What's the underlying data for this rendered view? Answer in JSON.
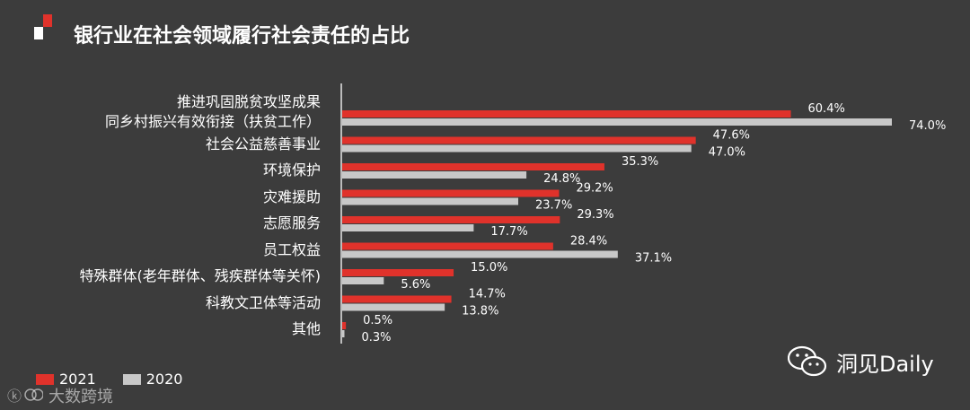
{
  "title": "银行业在社会领域履行社会责任的占比",
  "colors": {
    "series_2021": "#e0322b",
    "series_2020": "#c8c8c8",
    "background": "#3c3c3c",
    "accent": "#e0322b"
  },
  "chart_data": {
    "type": "bar",
    "orientation": "horizontal",
    "categories": [
      "推进巩固脱贫攻坚成果\n同乡村振兴有效衔接（扶贫工作）",
      "社会公益慈善事业",
      "环境保护",
      "灾难援助",
      "志愿服务",
      "员工权益",
      "特殊群体(老年群体、残疾群体等关怀)",
      "科教文卫体等活动",
      "其他"
    ],
    "series": [
      {
        "name": "2021",
        "values": [
          60.4,
          47.6,
          35.3,
          29.2,
          29.3,
          28.4,
          15.0,
          14.7,
          0.5
        ],
        "labels": [
          "60.4%",
          "47.6%",
          "35.3%",
          "29.2%",
          "29.3%",
          "28.4%",
          "15.0%",
          "14.7%",
          "0.5%"
        ]
      },
      {
        "name": "2020",
        "values": [
          74.0,
          47.0,
          24.8,
          23.7,
          17.7,
          37.1,
          5.6,
          13.8,
          0.3
        ],
        "labels": [
          "74.0%",
          "47.0%",
          "24.8%",
          "23.7%",
          "17.7%",
          "37.1%",
          "5.6%",
          "13.8%",
          "0.3%"
        ]
      }
    ],
    "unit": "%",
    "legend": "bottom-left",
    "grid": false
  },
  "legend": {
    "items": [
      "2021",
      "2020"
    ]
  },
  "branding": {
    "wechat_account": "洞见Daily",
    "watermark": "大数跨境",
    "watermark_icon": "logo-icon"
  }
}
